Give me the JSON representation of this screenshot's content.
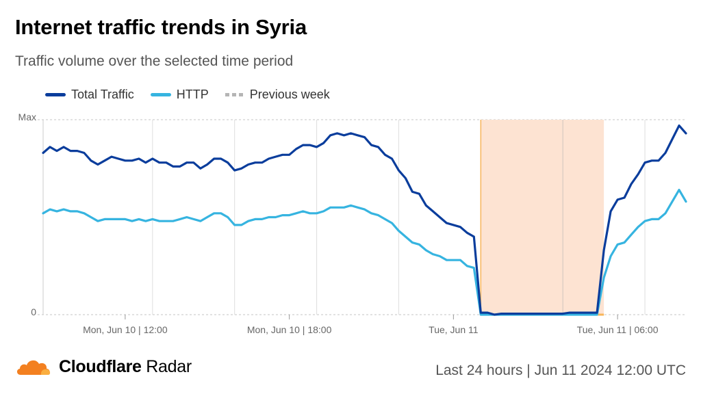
{
  "header": {
    "title": "Internet traffic trends in Syria",
    "subtitle": "Traffic volume over the selected time period"
  },
  "legend": [
    {
      "label": "Total Traffic",
      "color": "#0a3d9c",
      "style": "solid"
    },
    {
      "label": "HTTP",
      "color": "#36b4e0",
      "style": "solid"
    },
    {
      "label": "Previous week",
      "color": "#b5b5b5",
      "style": "dashed"
    }
  ],
  "footer": {
    "brand_bold": "Cloudflare",
    "brand_light": "Radar",
    "period": "Last 24 hours | Jun 11 2024 12:00 UTC"
  },
  "chart_data": {
    "type": "line",
    "title": "Internet traffic trends in Syria",
    "subtitle": "Traffic volume over the selected time period",
    "xlabel": "",
    "ylabel": "",
    "x_unit": "hours since Jun 10 09:00 UTC (15-min steps)",
    "xlim": [
      0,
      23.5
    ],
    "ylim": [
      0,
      1
    ],
    "y_ticks": [
      {
        "value": 0,
        "label": "0"
      },
      {
        "value": 1,
        "label": "Max"
      }
    ],
    "x_ticks": [
      {
        "value": 3,
        "label": "Mon, Jun 10 | 12:00"
      },
      {
        "value": 9,
        "label": "Mon, Jun 10 | 18:00"
      },
      {
        "value": 15,
        "label": "Tue, Jun 11"
      },
      {
        "value": 21,
        "label": "Tue, Jun 11 | 06:00"
      }
    ],
    "vertical_gridlines": [
      0,
      4,
      7,
      10,
      13,
      16,
      19,
      22
    ],
    "outage_band": {
      "start": 16,
      "end": 20.5,
      "color": "#fde3d2",
      "edge_color": "#f7b55a"
    },
    "x": [
      0,
      0.25,
      0.5,
      0.75,
      1,
      1.25,
      1.5,
      1.75,
      2,
      2.25,
      2.5,
      2.75,
      3,
      3.25,
      3.5,
      3.75,
      4,
      4.25,
      4.5,
      4.75,
      5,
      5.25,
      5.5,
      5.75,
      6,
      6.25,
      6.5,
      6.75,
      7,
      7.25,
      7.5,
      7.75,
      8,
      8.25,
      8.5,
      8.75,
      9,
      9.25,
      9.5,
      9.75,
      10,
      10.25,
      10.5,
      10.75,
      11,
      11.25,
      11.5,
      11.75,
      12,
      12.25,
      12.5,
      12.75,
      13,
      13.25,
      13.5,
      13.75,
      14,
      14.25,
      14.5,
      14.75,
      15,
      15.25,
      15.5,
      15.75,
      16,
      16.25,
      16.5,
      16.75,
      17,
      17.25,
      17.5,
      17.75,
      18,
      18.25,
      18.5,
      18.75,
      19,
      19.25,
      19.5,
      19.75,
      20,
      20.25,
      20.5,
      20.75,
      21,
      21.25,
      21.5,
      21.75,
      22,
      22.25,
      22.5,
      22.75,
      23,
      23.25,
      23.5
    ],
    "series": [
      {
        "name": "Total Traffic",
        "color": "#0a3d9c",
        "values": [
          0.83,
          0.86,
          0.84,
          0.86,
          0.84,
          0.84,
          0.83,
          0.79,
          0.77,
          0.79,
          0.81,
          0.8,
          0.79,
          0.79,
          0.8,
          0.78,
          0.8,
          0.78,
          0.78,
          0.76,
          0.76,
          0.78,
          0.78,
          0.75,
          0.77,
          0.8,
          0.8,
          0.78,
          0.74,
          0.75,
          0.77,
          0.78,
          0.78,
          0.8,
          0.81,
          0.82,
          0.82,
          0.85,
          0.87,
          0.87,
          0.86,
          0.88,
          0.92,
          0.93,
          0.92,
          0.93,
          0.92,
          0.91,
          0.87,
          0.86,
          0.82,
          0.8,
          0.74,
          0.7,
          0.63,
          0.62,
          0.56,
          0.53,
          0.5,
          0.47,
          0.46,
          0.45,
          0.42,
          0.4,
          0.01,
          0.01,
          0.0,
          0.005,
          0.005,
          0.005,
          0.005,
          0.005,
          0.005,
          0.005,
          0.005,
          0.005,
          0.005,
          0.01,
          0.01,
          0.01,
          0.01,
          0.01,
          0.33,
          0.53,
          0.59,
          0.6,
          0.67,
          0.72,
          0.78,
          0.79,
          0.79,
          0.83,
          0.9,
          0.97,
          0.93
        ]
      },
      {
        "name": "HTTP",
        "color": "#36b4e0",
        "values": [
          0.52,
          0.54,
          0.53,
          0.54,
          0.53,
          0.53,
          0.52,
          0.5,
          0.48,
          0.49,
          0.49,
          0.49,
          0.49,
          0.48,
          0.49,
          0.48,
          0.49,
          0.48,
          0.48,
          0.48,
          0.49,
          0.5,
          0.49,
          0.48,
          0.5,
          0.52,
          0.52,
          0.5,
          0.46,
          0.46,
          0.48,
          0.49,
          0.49,
          0.5,
          0.5,
          0.51,
          0.51,
          0.52,
          0.53,
          0.52,
          0.52,
          0.53,
          0.55,
          0.55,
          0.55,
          0.56,
          0.55,
          0.54,
          0.52,
          0.51,
          0.49,
          0.47,
          0.43,
          0.4,
          0.37,
          0.36,
          0.33,
          0.31,
          0.3,
          0.28,
          0.28,
          0.28,
          0.25,
          0.24,
          0.0,
          0.0,
          0.0,
          0.0,
          0.0,
          0.0,
          0.0,
          0.0,
          0.0,
          0.0,
          0.0,
          0.0,
          0.0,
          0.0,
          0.0,
          0.0,
          0.0,
          0.0,
          0.19,
          0.3,
          0.36,
          0.37,
          0.41,
          0.45,
          0.48,
          0.49,
          0.49,
          0.52,
          0.58,
          0.64,
          0.58
        ]
      }
    ],
    "previous_week": {
      "name": "Previous week",
      "visible": false
    }
  }
}
